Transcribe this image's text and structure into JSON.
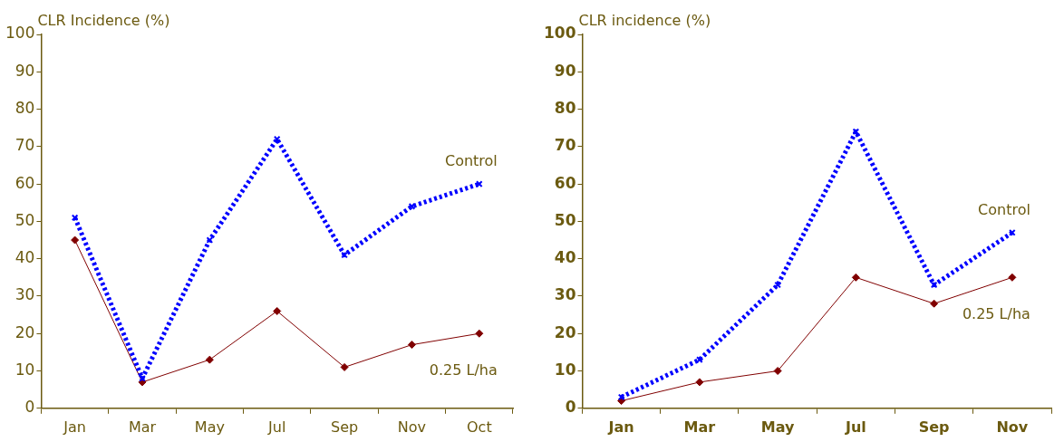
{
  "chart_data": [
    {
      "type": "line",
      "ylabel": "CLR Incidence (%)",
      "categories": [
        "Jan",
        "Mar",
        "May",
        "Jul",
        "Sep",
        "Nov",
        "Oct"
      ],
      "ylim": [
        0,
        100
      ],
      "yticks": [
        0,
        10,
        20,
        30,
        40,
        50,
        60,
        70,
        80,
        90,
        100
      ],
      "grid": false,
      "legend": false,
      "series": [
        {
          "name": "Control",
          "color": "#0000ff",
          "values": [
            51,
            8,
            45,
            72,
            41,
            54,
            60
          ],
          "line_style": "dotted",
          "marker": "cross"
        },
        {
          "name": "0.25 L/ha",
          "color": "#800000",
          "values": [
            45,
            7,
            13,
            26,
            11,
            17,
            20
          ],
          "line_style": "solid",
          "marker": "diamond"
        }
      ]
    },
    {
      "type": "line",
      "ylabel": "CLR incidence (%)",
      "categories": [
        "Jan",
        "Mar",
        "May",
        "Jul",
        "Sep",
        "Nov"
      ],
      "ylim": [
        0,
        100
      ],
      "yticks": [
        0,
        10,
        20,
        30,
        40,
        50,
        60,
        70,
        80,
        90,
        100
      ],
      "grid": false,
      "legend": false,
      "series": [
        {
          "name": "Control",
          "color": "#0000ff",
          "values": [
            3,
            13,
            33,
            74,
            33,
            47
          ],
          "line_style": "dotted",
          "marker": "cross"
        },
        {
          "name": "0.25 L/ha",
          "color": "#800000",
          "values": [
            2,
            7,
            10,
            35,
            28,
            35
          ],
          "line_style": "solid",
          "marker": "diamond"
        }
      ]
    }
  ]
}
